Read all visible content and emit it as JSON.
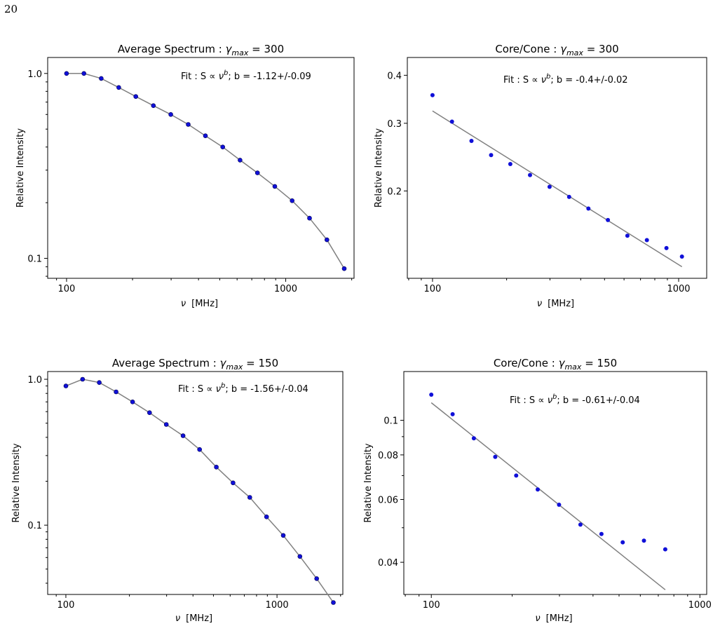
{
  "page": {
    "number": "20"
  },
  "chart_data": [
    {
      "type": "scatter",
      "title_prefix": "Average Spectrum : ",
      "title_suffix": " = 300",
      "xlabel": "[MHz]",
      "ylabel": "Relative Intensity",
      "annotation_prefix": "Fit : S  ∝ ",
      "annotation_suffix": "; b = -1.12+/-0.09",
      "xscale": "log",
      "yscale": "log",
      "xlim": [
        82,
        2050
      ],
      "ylim": [
        0.078,
        1.22
      ],
      "xticks": [
        100,
        1000
      ],
      "xtick_labels": [
        "100",
        "1000"
      ],
      "yticks": [
        0.1,
        1.0
      ],
      "ytick_labels": [
        "0.1",
        "1.0"
      ],
      "series": [
        {
          "style": "markers+line",
          "marker_color": "#1010d8",
          "line_color": "#808080",
          "x": [
            100,
            120,
            144,
            173,
            207,
            249,
            299,
            359,
            430,
            516,
            619,
            743,
            892,
            1070,
            1284,
            1541,
            1849
          ],
          "y": [
            1.0,
            1.0,
            0.94,
            0.84,
            0.75,
            0.67,
            0.6,
            0.53,
            0.46,
            0.4,
            0.34,
            0.29,
            0.245,
            0.205,
            0.165,
            0.126,
            0.088
          ]
        }
      ]
    },
    {
      "type": "scatter",
      "title_prefix": "Core/Cone : ",
      "title_suffix": " = 300",
      "xlabel": "[MHz]",
      "ylabel": "Relative Intensity",
      "annotation_prefix": "Fit : S  ∝ ",
      "annotation_suffix": "; b = -0.4+/-0.02",
      "xscale": "log",
      "yscale": "log",
      "xlim": [
        79,
        1300
      ],
      "ylim": [
        0.1185,
        0.445
      ],
      "xticks": [
        100,
        1000
      ],
      "xtick_labels": [
        "100",
        "1000"
      ],
      "yticks": [
        0.2,
        0.3,
        0.4
      ],
      "ytick_labels": [
        "0.2",
        "0.3",
        "0.4"
      ],
      "series": [
        {
          "style": "markers",
          "marker_color": "#1010d8",
          "x": [
            100,
            120,
            144,
            173,
            207,
            249,
            299,
            359,
            430,
            516,
            619,
            743,
            892,
            1031
          ],
          "y": [
            0.355,
            0.303,
            0.27,
            0.248,
            0.235,
            0.22,
            0.205,
            0.193,
            0.18,
            0.168,
            0.153,
            0.149,
            0.142,
            0.135
          ]
        },
        {
          "style": "line",
          "line_color": "#808080",
          "x": [
            100,
            1031
          ],
          "y": [
            0.323,
            0.127
          ]
        }
      ]
    },
    {
      "type": "scatter",
      "title_prefix": "Average Spectrum : ",
      "title_suffix": " = 150",
      "xlabel": "[MHz]",
      "ylabel": "Relative Intensity",
      "annotation_prefix": "Fit : S  ∝ ",
      "annotation_suffix": "; b = -1.56+/-0.04",
      "xscale": "log",
      "yscale": "log",
      "xlim": [
        82,
        2050
      ],
      "ylim": [
        0.0335,
        1.13
      ],
      "xticks": [
        100,
        1000
      ],
      "xtick_labels": [
        "100",
        "1000"
      ],
      "yticks": [
        0.1,
        1.0
      ],
      "ytick_labels": [
        "0.1",
        "1.0"
      ],
      "series": [
        {
          "style": "markers+line",
          "marker_color": "#1010d8",
          "line_color": "#808080",
          "x": [
            100,
            120,
            144,
            173,
            207,
            249,
            299,
            359,
            430,
            516,
            619,
            743,
            892,
            1070,
            1284,
            1541,
            1849
          ],
          "y": [
            0.9,
            1.0,
            0.95,
            0.82,
            0.7,
            0.59,
            0.49,
            0.41,
            0.33,
            0.25,
            0.195,
            0.155,
            0.114,
            0.085,
            0.061,
            0.043,
            0.0295
          ]
        }
      ]
    },
    {
      "type": "scatter",
      "title_prefix": "Core/Cone : ",
      "title_suffix": " = 150",
      "xlabel": "[MHz]",
      "ylabel": "Relative Intensity",
      "annotation_prefix": "Fit : S  ∝ ",
      "annotation_suffix": "; b = -0.61+/-0.04",
      "xscale": "log",
      "yscale": "log",
      "xlim": [
        79,
        1060
      ],
      "ylim": [
        0.0325,
        0.137
      ],
      "xticks": [
        100,
        1000
      ],
      "xtick_labels": [
        "100",
        "1000"
      ],
      "yticks": [
        0.04,
        0.06,
        0.08,
        0.1
      ],
      "ytick_labels": [
        "0.04",
        "0.06",
        "0.08",
        "0.1"
      ],
      "yminor": [
        0.05,
        0.07,
        0.09
      ],
      "series": [
        {
          "style": "markers",
          "marker_color": "#1010d8",
          "x": [
            100,
            120,
            144,
            173,
            207,
            249,
            299,
            359,
            430,
            516,
            619,
            743
          ],
          "y": [
            0.118,
            0.104,
            0.089,
            0.079,
            0.07,
            0.064,
            0.058,
            0.051,
            0.048,
            0.0455,
            0.046,
            0.0435
          ]
        },
        {
          "style": "line",
          "line_color": "#808080",
          "x": [
            100,
            743
          ],
          "y": [
            0.112,
            0.0335
          ]
        }
      ]
    }
  ]
}
